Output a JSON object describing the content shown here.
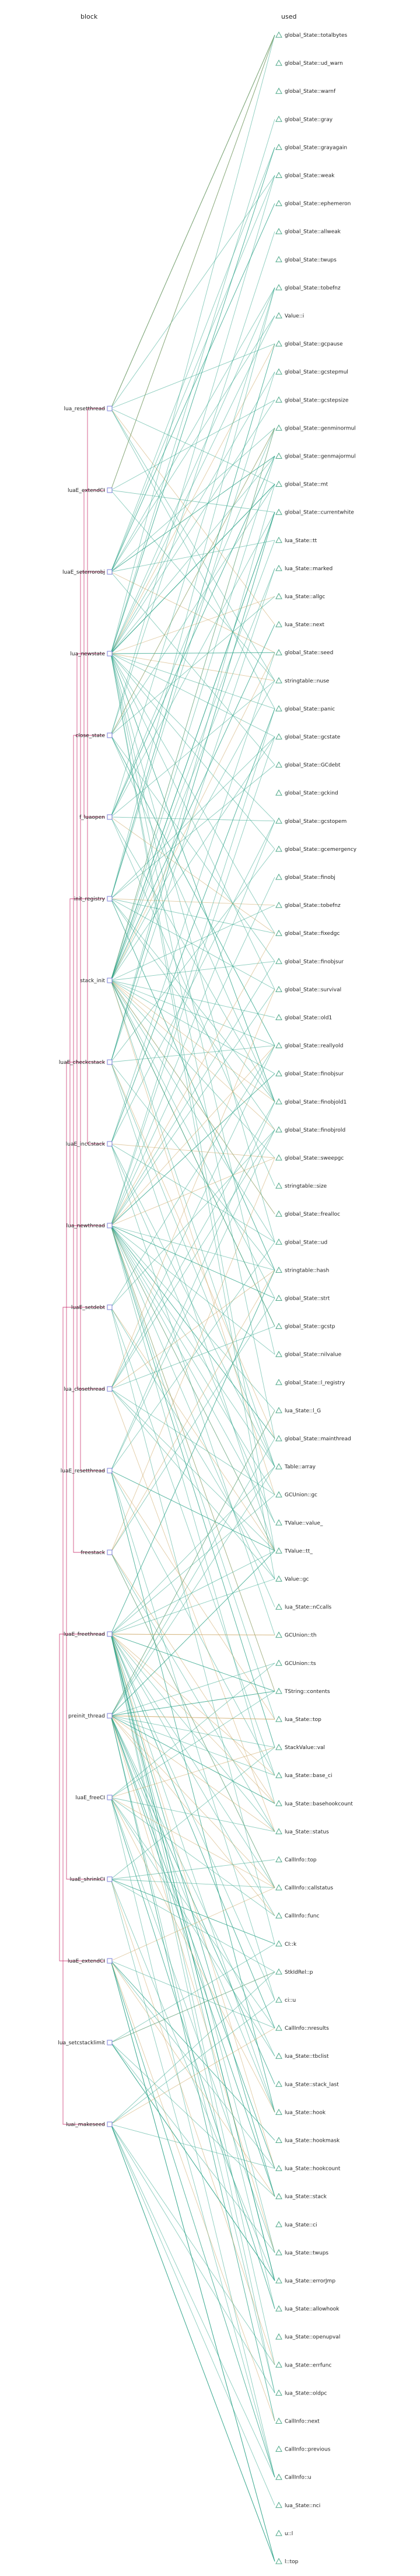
{
  "header": {
    "left_title": "block",
    "right_title": "used"
  },
  "colors": {
    "function_link": "#2aa386",
    "field_link": "#c9a05a",
    "call_bracket": "#c2185b",
    "function_box": "#7b7fd8",
    "used_marker": "#4fa889",
    "background": "#ffffff"
  },
  "icons": {
    "function_node": "square-node-icon",
    "used_node": "triangle-node-icon"
  },
  "functions": [
    "lua_resetthread",
    "luaE_extendCI",
    "luaE_seterrorobj",
    "lua_newstate",
    "close_state",
    "f_luaopen",
    "init_registry",
    "stack_init",
    "luaE_checkcstack",
    "luaE_incCstack",
    "lua_newthread",
    "luaE_setdebt",
    "lua_closethread",
    "luaE_resetthread",
    "freestack",
    "luaE_freethread",
    "preinit_thread",
    "luaE_freeCI",
    "luaE_shrinkCI",
    "luaE_extendCI",
    "lua_setcstacklimit",
    "luai_makeseed"
  ],
  "used": [
    "global_State::totalbytes",
    "global_State::ud_warn",
    "global_State::warnf",
    "global_State::gray",
    "global_State::grayagain",
    "global_State::weak",
    "global_State::ephemeron",
    "global_State::allweak",
    "global_State::twups",
    "global_State::tobefnz",
    "Value::i",
    "global_State::gcpause",
    "global_State::gcstepmul",
    "global_State::gcstepsize",
    "global_State::genminormul",
    "global_State::genmajormul",
    "global_State::mt",
    "global_State::currentwhite",
    "lua_State::tt",
    "lua_State::marked",
    "lua_State::allgc",
    "lua_State::next",
    "global_State::seed",
    "stringtable::nuse",
    "global_State::panic",
    "global_State::gcstate",
    "global_State::GCdebt",
    "global_State::gckind",
    "global_State::gcstopem",
    "global_State::gcemergency",
    "global_State::finobj",
    "global_State::tobefnz",
    "global_State::fixedgc",
    "global_State::finobjsur",
    "global_State::survival",
    "global_State::old1",
    "global_State::reallyold",
    "global_State::finobjsur",
    "global_State::finobjold1",
    "global_State::finobjrold",
    "global_State::sweepgc",
    "stringtable::size",
    "global_State::frealloc",
    "global_State::ud",
    "stringtable::hash",
    "global_State::strt",
    "global_State::gcstp",
    "global_State::nilvalue",
    "global_State::l_registry",
    "lua_State::l_G",
    "global_State::mainthread",
    "Table::array",
    "GCUnion::gc",
    "TValue::value_",
    "TValue::tt_",
    "Value::gc",
    "lua_State::nCcalls",
    "GCUnion::th",
    "GCUnion::ts",
    "TString::contents",
    "lua_State::top",
    "StackValue::val",
    "lua_State::base_ci",
    "lua_State::basehookcount",
    "lua_State::status",
    "CallInfo::top",
    "CallInfo::callstatus",
    "CallInfo::func",
    "CI::k",
    "StkIdRel::p",
    "ci::u",
    "CallInfo::nresults",
    "lua_State::tbclist",
    "lua_State::stack_last",
    "lua_State::hook",
    "lua_State::hookmask",
    "lua_State::hookcount",
    "lua_State::stack",
    "lua_State::ci",
    "lua_State::twups",
    "lua_State::errorJmp",
    "lua_State::allowhook",
    "lua_State::openupval",
    "lua_State::errfunc",
    "lua_State::oldpc",
    "CallInfo::next",
    "CallInfo::previous",
    "CallInfo::u",
    "lua_State::nci",
    "u::l",
    "l::top"
  ]
}
